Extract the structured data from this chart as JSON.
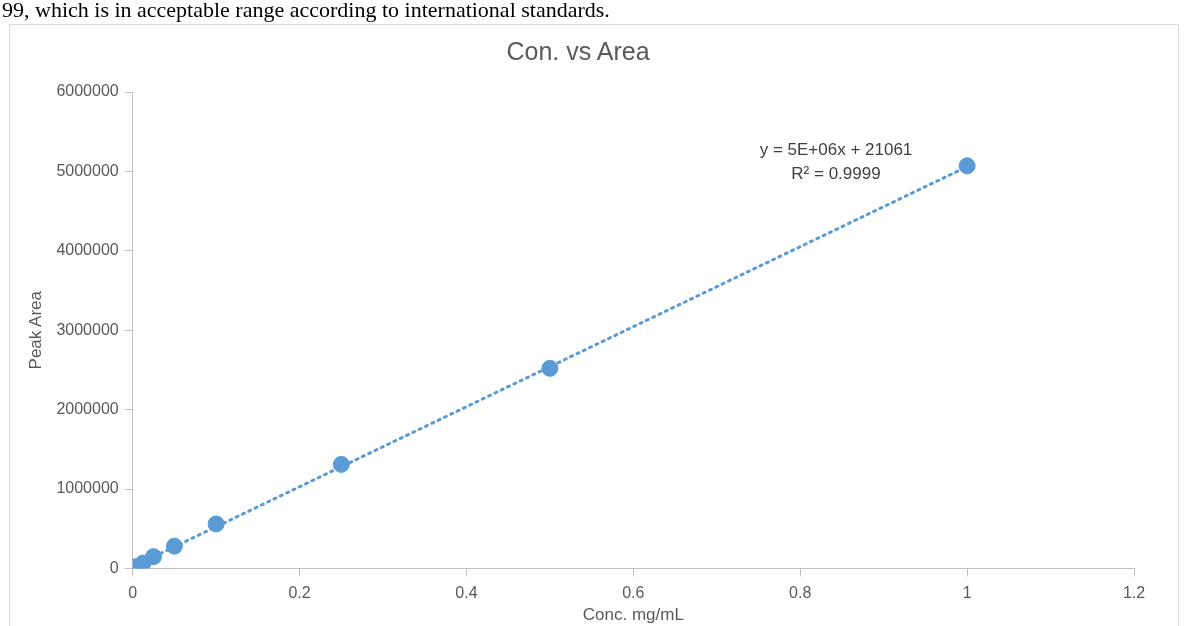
{
  "chart_data": {
    "type": "scatter",
    "title": "Con. vs Area",
    "xlabel": "Conc. mg/mL",
    "ylabel": "Peak Area",
    "xlim": [
      0,
      1.2
    ],
    "xticks": [
      0,
      0.2,
      0.4,
      0.6,
      0.8,
      1,
      1.2
    ],
    "ylim": [
      0,
      6000000
    ],
    "yticks": [
      0,
      1000000,
      2000000,
      3000000,
      4000000,
      5000000,
      6000000
    ],
    "grid": false,
    "legend": false,
    "marker": "circle",
    "series": [
      {
        "color": "#5b9bd5",
        "x": [
          0.003,
          0.0125,
          0.025,
          0.05,
          0.1,
          0.25,
          0.5,
          1
        ],
        "values": [
          20000,
          67000,
          148000,
          280000,
          560000,
          1310000,
          2520000,
          5070000
        ]
      },
      {
        "type": "line",
        "line_style": "dotted",
        "marker": "none",
        "color": "#5b9bd5",
        "x": [
          0.003,
          1
        ],
        "values": [
          36000,
          5060000
        ]
      }
    ],
    "annotations": [
      "99, which is in acceptable range according to international standards.",
      "y = 5E+06x + 21061",
      "R² = 0.9999"
    ]
  }
}
